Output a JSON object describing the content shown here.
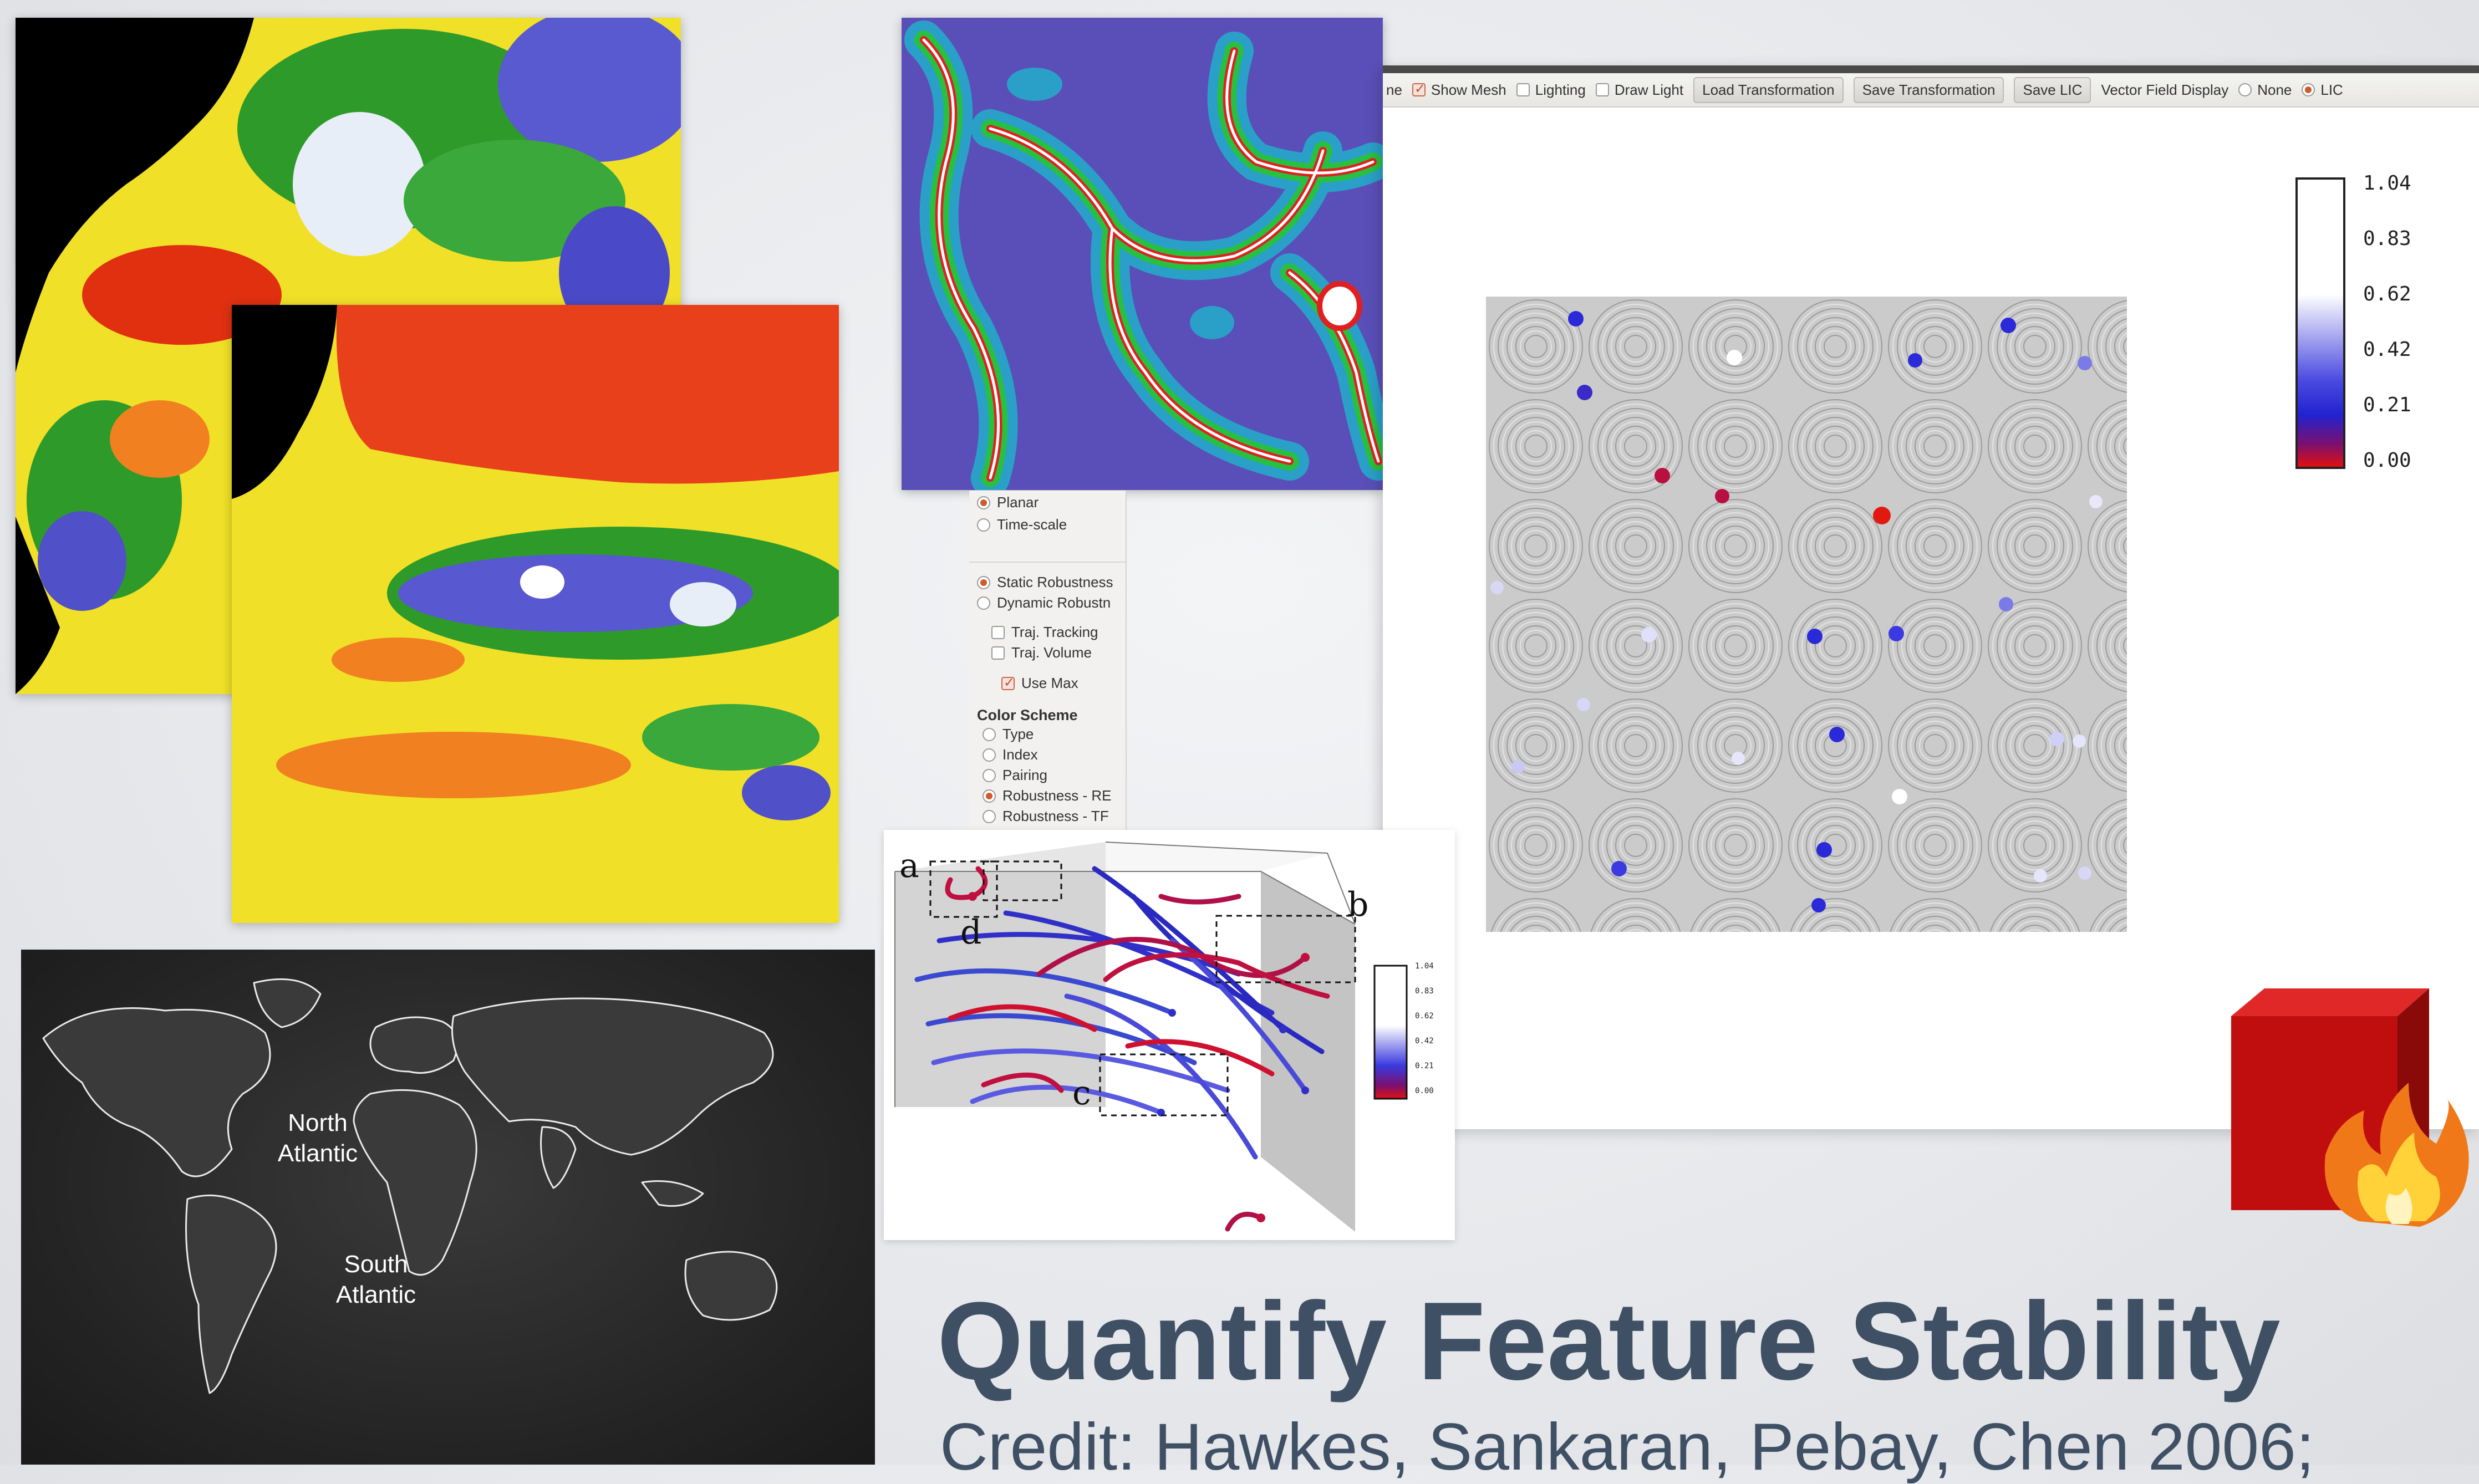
{
  "toolbar": {
    "partial_label": "ne",
    "show_mesh": {
      "label": "Show Mesh",
      "checked": true
    },
    "lighting": {
      "label": "Lighting",
      "checked": false
    },
    "draw_light": {
      "label": "Draw Light",
      "checked": false
    },
    "buttons": [
      "Load Transformation",
      "Save Transformation",
      "Save LIC"
    ],
    "vector_field_display": {
      "label": "Vector Field Display",
      "options": [
        "None",
        "LIC"
      ],
      "selected": "LIC"
    }
  },
  "side_panel": {
    "mode_options": [
      {
        "label": "Planar",
        "selected": true
      },
      {
        "label": "Time-scale",
        "selected": false
      }
    ],
    "robustness_options": [
      {
        "label": "Static Robustness",
        "selected": true
      },
      {
        "label": "Dynamic Robustn",
        "selected": false
      }
    ],
    "checks": [
      {
        "label": "Traj. Tracking",
        "checked": false
      },
      {
        "label": "Traj. Volume",
        "checked": false
      }
    ],
    "use_max": {
      "label": "Use Max",
      "checked": true
    },
    "color_scheme": {
      "heading": "Color Scheme",
      "options": [
        {
          "label": "Type",
          "selected": false
        },
        {
          "label": "Index",
          "selected": false
        },
        {
          "label": "Pairing",
          "selected": false
        },
        {
          "label": "Robustness - RE",
          "selected": true
        },
        {
          "label": "Robustness - TF",
          "selected": false
        }
      ]
    }
  },
  "colorbar": {
    "ticks": [
      "1.04",
      "0.83",
      "0.62",
      "0.42",
      "0.21",
      "0.00"
    ]
  },
  "trajectory_figure": {
    "labels": [
      "a",
      "b",
      "c",
      "d"
    ],
    "colorbar_ticks": [
      "1.04",
      "0.83",
      "0.62",
      "0.42",
      "0.21",
      "0.00"
    ]
  },
  "world_map": {
    "labels": [
      "North\nAtlantic",
      "South\nAtlantic"
    ]
  },
  "slide": {
    "title": "Quantify Feature Stability",
    "credit": "Credit: Hawkes, Sankaran, Pebay, Chen 2006;"
  },
  "colors": {
    "title": "#3f5065",
    "accent_radio": "#d05a2a",
    "robust_high": "#ffffff",
    "robust_mid": "#2222d0",
    "robust_low": "#e01010"
  },
  "icons": [
    "fire-icon",
    "checkbox-icon",
    "radio-icon"
  ]
}
